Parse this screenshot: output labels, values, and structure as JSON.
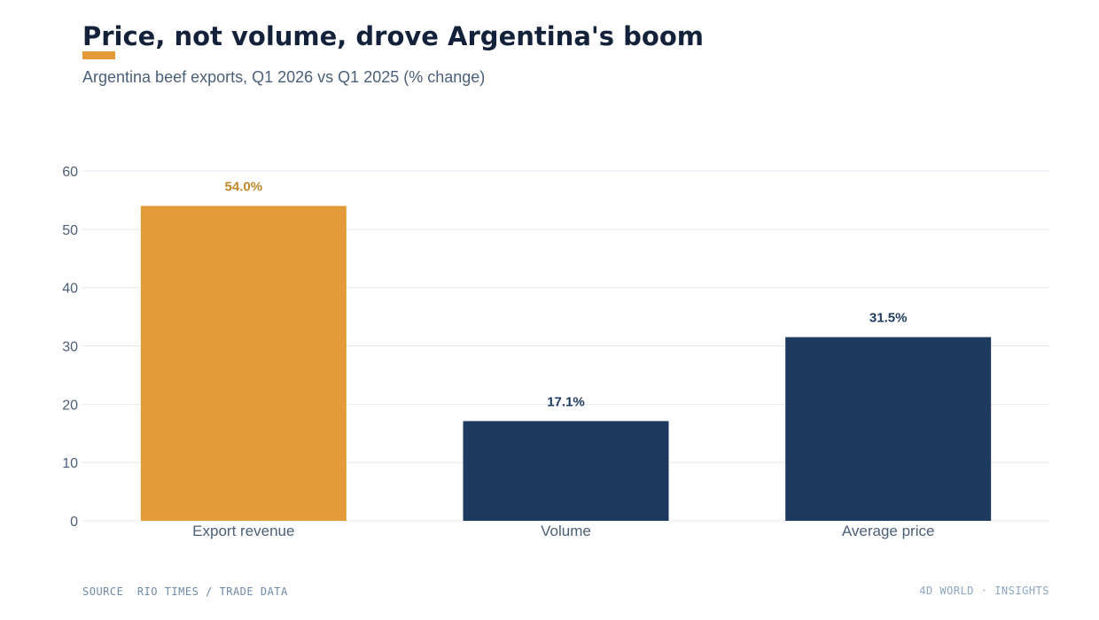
{
  "header": {
    "title": "Price, not volume, drove Argentina's boom",
    "subtitle": "Argentina beef exports, Q1 2026 vs Q1 2025 (% change)"
  },
  "footer": {
    "source_label": "SOURCE",
    "source_text": "RIO TIMES / TRADE DATA",
    "brand": "4D WORLD · INSIGHTS"
  },
  "colors": {
    "highlight": "#e39b3a",
    "highlight_label": "#c0862c",
    "primary": "#1e3a5f",
    "grid": "#e3e9f1",
    "axis_text": "#4b5f78"
  },
  "chart_data": {
    "type": "bar",
    "categories": [
      "Export revenue",
      "Volume",
      "Average price"
    ],
    "values": [
      54.0,
      17.1,
      31.5
    ],
    "data_labels": [
      "54.0%",
      "17.1%",
      "31.5%"
    ],
    "highlighted_index": 0,
    "ylim": [
      0,
      60
    ],
    "yticks": [
      0,
      10,
      20,
      30,
      40,
      50,
      60
    ],
    "grid": true,
    "legend": "none",
    "xlabel": "",
    "ylabel": ""
  }
}
